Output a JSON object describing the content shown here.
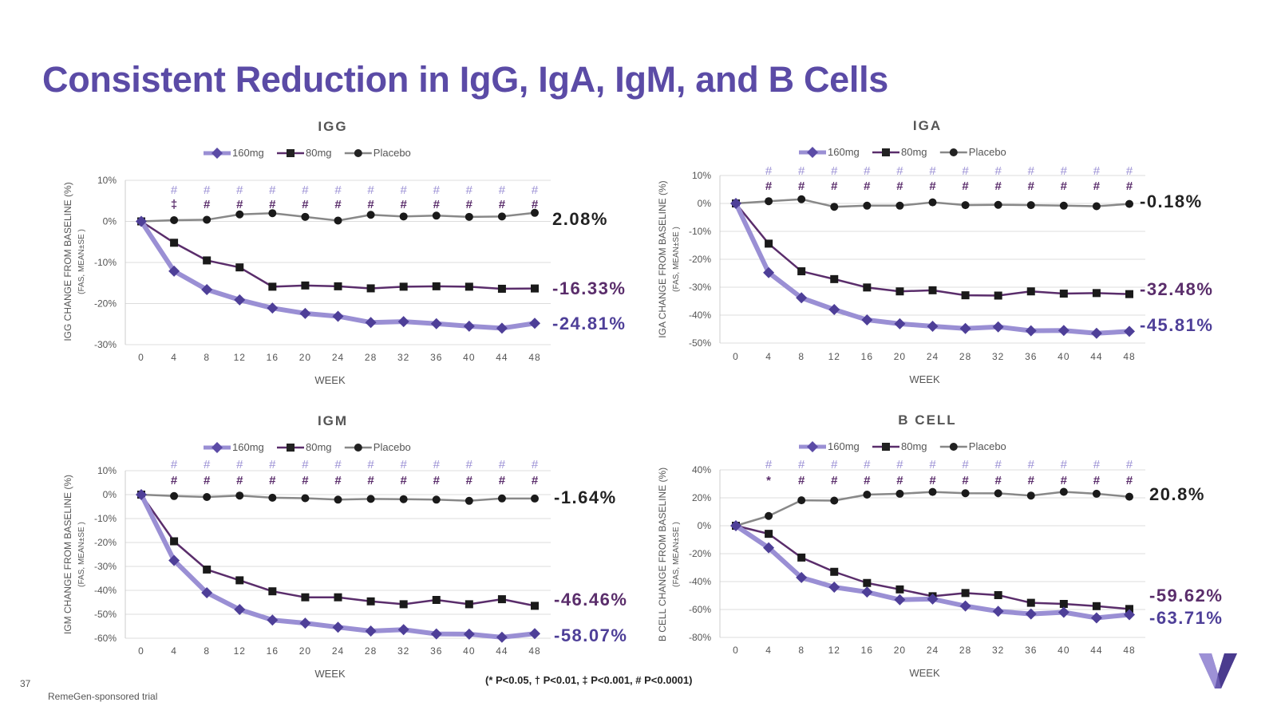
{
  "page": {
    "title": "Consistent Reduction in IgG, IgA, IgM, and B Cells",
    "page_number": "37",
    "footnote": "RemeGen-sponsored trial",
    "significance_legend": "(* P<0.05,  † P<0.01,  ‡ P<0.001, # P<0.0001)"
  },
  "chart_data": [
    {
      "type": "line",
      "title": "IGG",
      "ylabel": "IGG CHANGE FROM BASELINE (%)",
      "ylabel_sub": "(FAS, MEAN±SE )",
      "xlabel": "WEEK",
      "x": [
        0,
        4,
        8,
        12,
        16,
        20,
        24,
        28,
        32,
        36,
        40,
        44,
        48
      ],
      "ylim": [
        -30,
        10
      ],
      "yticks": [
        -30,
        -20,
        -10,
        0,
        10
      ],
      "grid": true,
      "legend": "top-center",
      "series": [
        {
          "name": "160mg",
          "color": "#9a8fd4",
          "values": [
            0,
            -12.1,
            -16.6,
            -19.1,
            -21.1,
            -22.4,
            -23.1,
            -24.6,
            -24.4,
            -24.9,
            -25.5,
            -26.0,
            -24.81
          ],
          "end_label": "-24.81%"
        },
        {
          "name": "80mg",
          "color": "#5a2d6b",
          "values": [
            0,
            -5.2,
            -9.5,
            -11.2,
            -15.9,
            -15.6,
            -15.8,
            -16.3,
            -15.9,
            -15.8,
            -15.9,
            -16.4,
            -16.33
          ],
          "end_label": "-16.33%"
        },
        {
          "name": "Placebo",
          "color": "#888888",
          "values": [
            0,
            0.3,
            0.4,
            1.7,
            2.0,
            1.1,
            0.2,
            1.6,
            1.2,
            1.4,
            1.1,
            1.2,
            2.08
          ],
          "end_label": "2.08%"
        }
      ],
      "sig_top": [
        "#",
        "#",
        "#",
        "#",
        "#",
        "#",
        "#",
        "#",
        "#",
        "#",
        "#",
        "#"
      ],
      "sig_bottom": [
        "‡",
        "#",
        "#",
        "#",
        "#",
        "#",
        "#",
        "#",
        "#",
        "#",
        "#",
        "#"
      ]
    },
    {
      "type": "line",
      "title": "IGA",
      "ylabel": "IGA CHANGE FROM BASELINE (%)",
      "ylabel_sub": "(FAS, MEAN±SE )",
      "xlabel": "WEEK",
      "x": [
        0,
        4,
        8,
        12,
        16,
        20,
        24,
        28,
        32,
        36,
        40,
        44,
        48
      ],
      "ylim": [
        -50,
        10
      ],
      "yticks": [
        -50,
        -40,
        -30,
        -20,
        -10,
        0,
        10
      ],
      "grid": true,
      "legend": "top-center",
      "series": [
        {
          "name": "160mg",
          "color": "#9a8fd4",
          "values": [
            0,
            -24.8,
            -33.8,
            -38.0,
            -41.7,
            -43.1,
            -44.0,
            -44.8,
            -44.2,
            -45.6,
            -45.5,
            -46.5,
            -45.81
          ],
          "end_label": "-45.81%"
        },
        {
          "name": "80mg",
          "color": "#5a2d6b",
          "values": [
            0,
            -14.4,
            -24.3,
            -27.1,
            -30.1,
            -31.5,
            -31.1,
            -32.9,
            -33.0,
            -31.5,
            -32.3,
            -32.1,
            -32.48
          ],
          "end_label": "-32.48%"
        },
        {
          "name": "Placebo",
          "color": "#888888",
          "values": [
            0,
            0.8,
            1.5,
            -1.2,
            -0.8,
            -0.8,
            0.4,
            -0.6,
            -0.5,
            -0.6,
            -0.8,
            -1.0,
            -0.18
          ],
          "end_label": "-0.18%"
        }
      ],
      "sig_top": [
        "#",
        "#",
        "#",
        "#",
        "#",
        "#",
        "#",
        "#",
        "#",
        "#",
        "#",
        "#"
      ],
      "sig_bottom": [
        "#",
        "#",
        "#",
        "#",
        "#",
        "#",
        "#",
        "#",
        "#",
        "#",
        "#",
        "#"
      ]
    },
    {
      "type": "line",
      "title": "IGM",
      "ylabel": "IGM CHANGE FROM BASELINE (%)",
      "ylabel_sub": "(FAS, MEAN±SE )",
      "xlabel": "WEEK",
      "x": [
        0,
        4,
        8,
        12,
        16,
        20,
        24,
        28,
        32,
        36,
        40,
        44,
        48
      ],
      "ylim": [
        -60,
        10
      ],
      "yticks": [
        -60,
        -50,
        -40,
        -30,
        -20,
        -10,
        0,
        10
      ],
      "grid": true,
      "legend": "top-center",
      "series": [
        {
          "name": "160mg",
          "color": "#9a8fd4",
          "values": [
            0,
            -27.5,
            -41.0,
            -48.0,
            -52.4,
            -53.7,
            -55.4,
            -57.0,
            -56.4,
            -58.2,
            -58.3,
            -59.6,
            -58.07
          ],
          "end_label": "-58.07%"
        },
        {
          "name": "80mg",
          "color": "#5a2d6b",
          "values": [
            0,
            -19.5,
            -31.3,
            -35.8,
            -40.4,
            -42.9,
            -42.9,
            -44.6,
            -45.8,
            -44.0,
            -45.8,
            -43.7,
            -46.46
          ],
          "end_label": "-46.46%"
        },
        {
          "name": "Placebo",
          "color": "#888888",
          "values": [
            0,
            -0.6,
            -1.0,
            -0.4,
            -1.3,
            -1.5,
            -2.1,
            -1.8,
            -1.9,
            -2.1,
            -2.6,
            -1.6,
            -1.64
          ],
          "end_label": "-1.64%"
        }
      ],
      "sig_top": [
        "#",
        "#",
        "#",
        "#",
        "#",
        "#",
        "#",
        "#",
        "#",
        "#",
        "#",
        "#"
      ],
      "sig_bottom": [
        "#",
        "#",
        "#",
        "#",
        "#",
        "#",
        "#",
        "#",
        "#",
        "#",
        "#",
        "#"
      ]
    },
    {
      "type": "line",
      "title": "B CELL",
      "ylabel": "B CELL CHANGE FROM BASELINE (%)",
      "ylabel_sub": "(FAS, MEAN±SE )",
      "xlabel": "WEEK",
      "x": [
        0,
        4,
        8,
        12,
        16,
        20,
        24,
        28,
        32,
        36,
        40,
        44,
        48
      ],
      "ylim": [
        -80,
        40
      ],
      "yticks": [
        -80,
        -60,
        -40,
        -20,
        0,
        20,
        40
      ],
      "grid": true,
      "legend": "top-center",
      "series": [
        {
          "name": "160mg",
          "color": "#9a8fd4",
          "values": [
            0,
            -15.8,
            -37.1,
            -44.0,
            -47.5,
            -53.0,
            -52.5,
            -57.5,
            -61.3,
            -63.2,
            -62.0,
            -66.0,
            -63.71
          ],
          "end_label": "-63.71%"
        },
        {
          "name": "80mg",
          "color": "#5a2d6b",
          "values": [
            0,
            -5.8,
            -22.8,
            -33.0,
            -41.0,
            -45.6,
            -50.5,
            -48.2,
            -49.7,
            -55.2,
            -56.0,
            -57.6,
            -59.62
          ],
          "end_label": "-59.62%"
        },
        {
          "name": "Placebo",
          "color": "#888888",
          "values": [
            0,
            7.0,
            18.2,
            18.0,
            22.3,
            22.9,
            24.2,
            23.3,
            23.2,
            21.6,
            24.3,
            22.9,
            20.8
          ],
          "end_label": "20.8%"
        }
      ],
      "sig_top": [
        "#",
        "#",
        "#",
        "#",
        "#",
        "#",
        "#",
        "#",
        "#",
        "#",
        "#",
        "#"
      ],
      "sig_bottom": [
        "*",
        "#",
        "#",
        "#",
        "#",
        "#",
        "#",
        "#",
        "#",
        "#",
        "#",
        "#"
      ]
    }
  ]
}
